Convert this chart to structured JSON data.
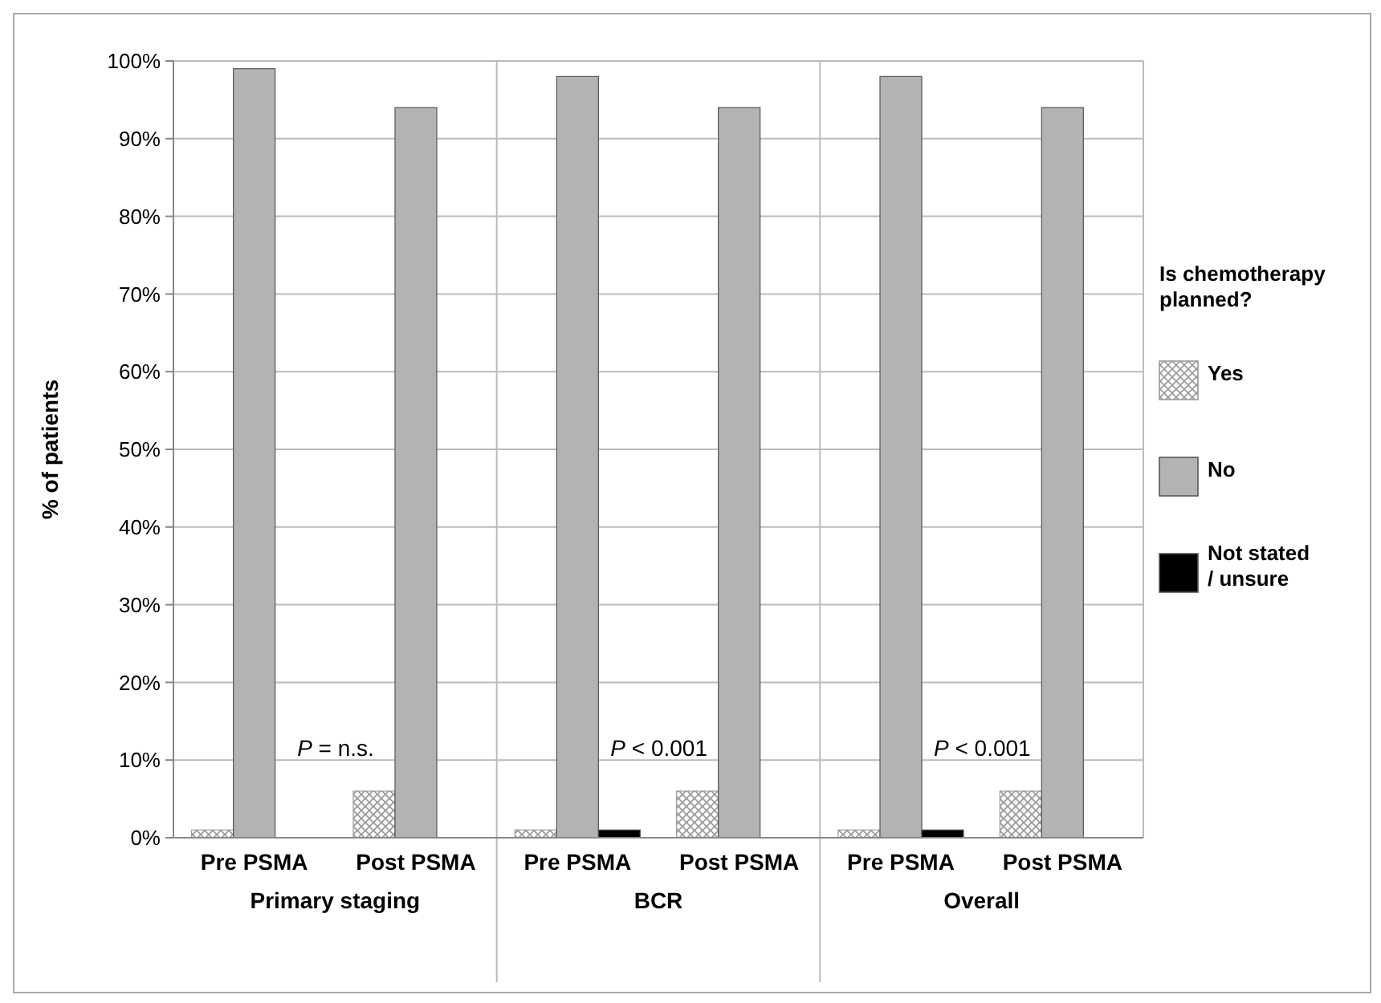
{
  "chart_data": {
    "type": "bar",
    "ylabel": "% of patients",
    "legend_title": "Is chemotherapy planned?",
    "legend": "right",
    "categories": [
      "Pre PSMA",
      "Post PSMA",
      "Pre PSMA",
      "Post PSMA",
      "Pre PSMA",
      "Post PSMA"
    ],
    "series": [
      {
        "name": "Yes",
        "color": "#999999",
        "values": [
          1,
          6,
          1,
          6,
          1,
          6
        ]
      },
      {
        "name": "No",
        "color": "#b3b3b3",
        "values": [
          99,
          94,
          98,
          94,
          98,
          94
        ]
      },
      {
        "name": "Not stated / unsure",
        "color": "#000000",
        "values": [
          0,
          0,
          1,
          0,
          1,
          0
        ]
      }
    ],
    "ylim": [
      0,
      100
    ],
    "yticks": [
      {
        "value": 0,
        "label": "0%"
      },
      {
        "value": 10,
        "label": "10%"
      },
      {
        "value": 20,
        "label": "20%"
      },
      {
        "value": 30,
        "label": "30%"
      },
      {
        "value": 40,
        "label": "40%"
      },
      {
        "value": 50,
        "label": "50%"
      },
      {
        "value": 60,
        "label": "60%"
      },
      {
        "value": 70,
        "label": "70%"
      },
      {
        "value": 80,
        "label": "80%"
      },
      {
        "value": 90,
        "label": "90%"
      },
      {
        "value": 100,
        "label": "100%"
      }
    ],
    "grid": "y",
    "annotations": [
      "Primary staging",
      "BCR",
      "Overall",
      "P = n.s.",
      "P < 0.001",
      "P < 0.001"
    ]
  }
}
